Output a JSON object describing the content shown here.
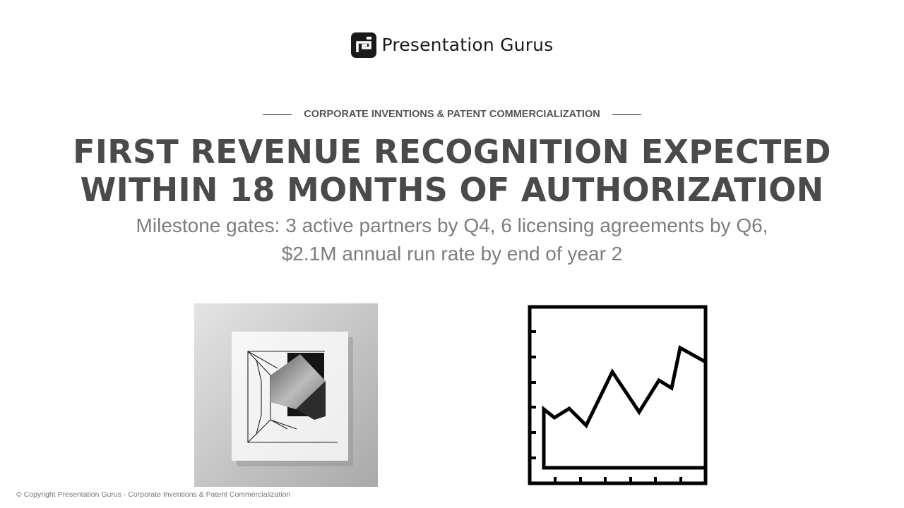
{
  "brand": {
    "name": "Presentation Gurus",
    "logo_icon": "presentation-gurus-logo-icon"
  },
  "slide": {
    "eyebrow": "CORPORATE INVENTIONS & PATENT COMMERCIALIZATION",
    "title_line1": "FIRST REVENUE RECOGNITION EXPECTED",
    "title_line2": "WITHIN 18 MONTHS OF AUTHORIZATION",
    "subtitle_line1": "Milestone gates: 3 active partners by Q4, 6 licensing agreements by Q6,",
    "subtitle_line2": "$2.1M annual run rate by end of year 2"
  },
  "images": {
    "left": "abstract-geometric-art-image",
    "right": "line-chart-icon"
  },
  "colors": {
    "title": "#4a4a4a",
    "subtitle": "#7d7d7d",
    "eyebrow": "#555555",
    "logo": "#1a1a1a"
  },
  "footer": {
    "copyright": "© Copyright Presentation Gurus - Corporate Inventions & Patent Commercialization"
  }
}
